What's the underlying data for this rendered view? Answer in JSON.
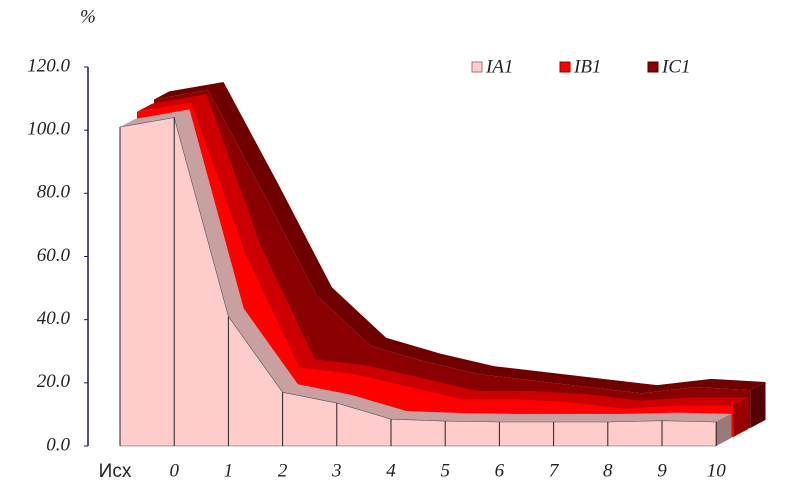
{
  "chart_data": {
    "type": "area3d",
    "y_label": "%",
    "categories": [
      "Исх",
      "0",
      "1",
      "2",
      "3",
      "4",
      "5",
      "6",
      "7",
      "8",
      "9",
      "10"
    ],
    "series": [
      {
        "name": "IA1",
        "color": "#ffcccc",
        "values": [
          101,
          104,
          41,
          17,
          13.6,
          8.5,
          7.9,
          7.6,
          7.6,
          7.6,
          8,
          7.6
        ]
      },
      {
        "name": "IB1",
        "color": "#ff0000",
        "values": [
          103,
          106,
          58,
          22,
          20,
          16,
          12,
          12,
          11,
          9,
          10,
          10
        ]
      },
      {
        "name": "IC1",
        "color": "#8b0000",
        "values": [
          104,
          107,
          75,
          42,
          26,
          21,
          17,
          15,
          13,
          11,
          13,
          12
        ]
      }
    ],
    "ylim": [
      0,
      120
    ],
    "yticks": [
      {
        "value": 0,
        "label": "0.0"
      },
      {
        "value": 20,
        "label": "20.0"
      },
      {
        "value": 40,
        "label": "40.0"
      },
      {
        "value": 60,
        "label": "60.0"
      },
      {
        "value": 80,
        "label": "80.0"
      },
      {
        "value": 100,
        "label": "100.0"
      },
      {
        "value": 120,
        "label": "120.0"
      }
    ],
    "legend": "top-right"
  }
}
